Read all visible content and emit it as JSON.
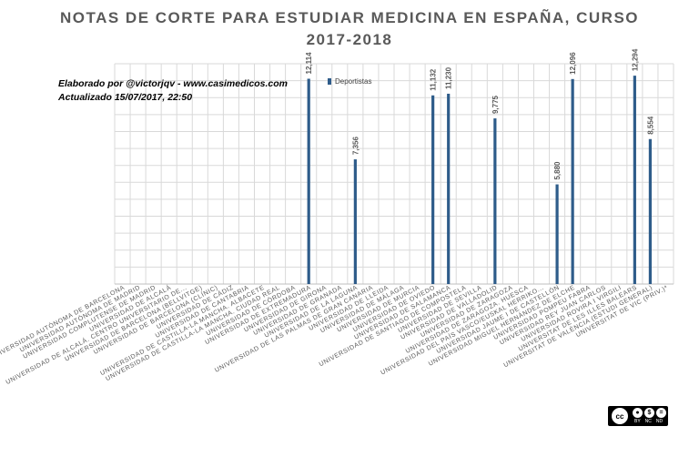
{
  "title_line1": "NOTAS DE CORTE PARA ESTUDIAR MEDICINA EN ESPAÑA, CURSO",
  "title_line2": "2017-2018",
  "credit_line1": "Elaborado por @victorjqv - www.casimedicos.com",
  "credit_line2": "Actualizado 15/07/2017, 22:50",
  "license": {
    "cc": "cc",
    "by": "BY",
    "nc": "NC",
    "nd": "ND",
    "icon_names": [
      "cc-icon",
      "by-icon",
      "nc-icon",
      "nd-icon"
    ]
  },
  "colors": {
    "bar": "#2e5c8a",
    "grid": "#d9d9d9",
    "text": "#595959"
  },
  "chart_data": {
    "type": "bar",
    "title": "NOTAS DE CORTE PARA ESTUDIAR MEDICINA EN ESPAÑA, CURSO 2017-2018",
    "legend_position": "top",
    "ylim": [
      0,
      13
    ],
    "grid": true,
    "categories": [
      "UNIVERSIDAD AUTÓNOMA DE BARCELONA",
      "UNIVERSIDAD AUTÓNOMA DE MADRID",
      "UNIVERSIDAD COMPLUTENSE DE MADRID",
      "UNIVERSIDAD DE ALCALÁ",
      "UNIVERSIDAD DE ALCALÁ. CENTRO UNIVERSITARIO DE...",
      "UNIVERSIDAD DE BARCELONA (BELLVITGE)",
      "UNIVERSIDAD DE BARCELONA (CLÍNIC)",
      "UNIVERSIDAD DE CÁDIZ",
      "UNIVERSIDAD DE CANTABRIA",
      "UNIVERSIDAD DE CASTILLA-LA MANCHA. ALBACETE",
      "UNIVERSIDAD DE CASTILLA-LA MANCHA. CIUDAD REAL",
      "UNIVERSIDAD DE CÓRDOBA",
      "UNIVERSIDAD DE EXTREMADURA",
      "UNIVERSIDAD DE GIRONA",
      "UNIVERSIDAD DE GRANADA",
      "UNIVERSIDAD DE LA LAGUNA",
      "UNIVERSIDAD DE LAS PALMAS DE GRAN CANARIA",
      "UNIVERSIDAD DE LLEIDA",
      "UNIVERSIDAD DE MÁLAGA",
      "UNIVERSIDAD DE MURCIA",
      "UNIVERSIDAD DE OVIEDO",
      "UNIVERSIDAD DE SALAMANCA",
      "UNIVERSIDAD DE SANTIAGO DE COMPOSTELA",
      "UNIVERSIDAD DE SEVILLA",
      "UNIVERSIDAD DE VALLADOLID",
      "UNIVERSIDAD DE ZARAGOZA",
      "UNIVERSIDAD DE ZARAGOZA. HUESCA",
      "UNIVERSIDAD DEL PAÍS VASCO/EUSKAL HERRIKO...",
      "UNIVERSIDAD JAUME I DE CASTELLÓN",
      "UNIVERSIDAD MIGUEL HERNÁNDEZ DE ELCHE",
      "UNIVERSIDAD POMPEU FABRA",
      "UNIVERSIDAD REY JUAN CARLOS",
      "UNIVERSIDAD ROVIRA I VIRGILI",
      "UNIVERSITAT DE LES ILLES BALEARS",
      "UNIVERSITAT DE VALÈNCIA (ESTUDI GENERAL)",
      "UNIVERSITAT DE VIC (PRIV.)*"
    ],
    "series": [
      {
        "name": "Deportistas",
        "values": [
          null,
          null,
          null,
          null,
          null,
          null,
          null,
          null,
          null,
          null,
          null,
          null,
          12.114,
          null,
          null,
          7.356,
          null,
          null,
          null,
          null,
          11.132,
          11.23,
          null,
          null,
          9.775,
          null,
          null,
          null,
          5.88,
          12.096,
          null,
          null,
          null,
          12.294,
          8.554,
          null
        ],
        "labels": [
          null,
          null,
          null,
          null,
          null,
          null,
          null,
          null,
          null,
          null,
          null,
          null,
          "12,114",
          null,
          null,
          "7,356",
          null,
          null,
          null,
          null,
          "11,132",
          "11,230",
          null,
          null,
          "9,775",
          null,
          null,
          null,
          "5,880",
          "12,096",
          null,
          null,
          null,
          "12,294",
          "8,554",
          null
        ]
      }
    ]
  }
}
